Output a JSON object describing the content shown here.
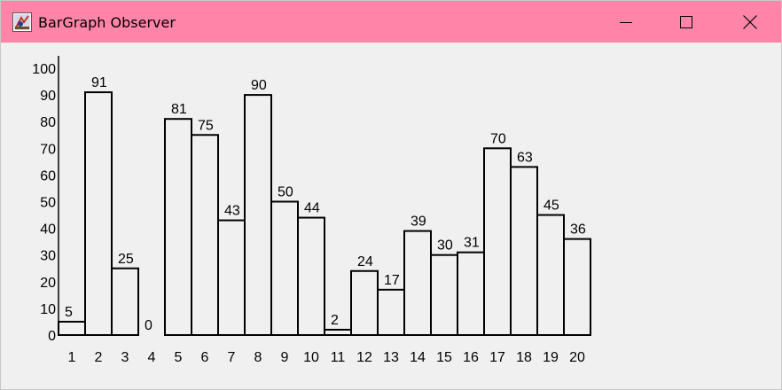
{
  "window": {
    "title": "BarGraph Observer",
    "icon": "java-app-icon",
    "titlebar_color": "#ff85a8",
    "controls": [
      "minimize-icon",
      "maximize-icon",
      "close-icon"
    ]
  },
  "chart_data": {
    "type": "bar",
    "title": "",
    "xlabel": "",
    "ylabel": "",
    "ylim": [
      0,
      100
    ],
    "yticks": [
      0,
      10,
      20,
      30,
      40,
      50,
      60,
      70,
      80,
      90,
      100
    ],
    "categories": [
      "1",
      "2",
      "3",
      "4",
      "5",
      "6",
      "7",
      "8",
      "9",
      "10",
      "11",
      "12",
      "13",
      "14",
      "15",
      "16",
      "17",
      "18",
      "19",
      "20"
    ],
    "values": [
      5,
      91,
      25,
      0,
      81,
      75,
      43,
      90,
      50,
      44,
      2,
      24,
      17,
      39,
      30,
      31,
      70,
      63,
      45,
      36
    ],
    "bar_fill": "#f0f0f0",
    "bar_stroke": "#000000",
    "grid": false
  }
}
